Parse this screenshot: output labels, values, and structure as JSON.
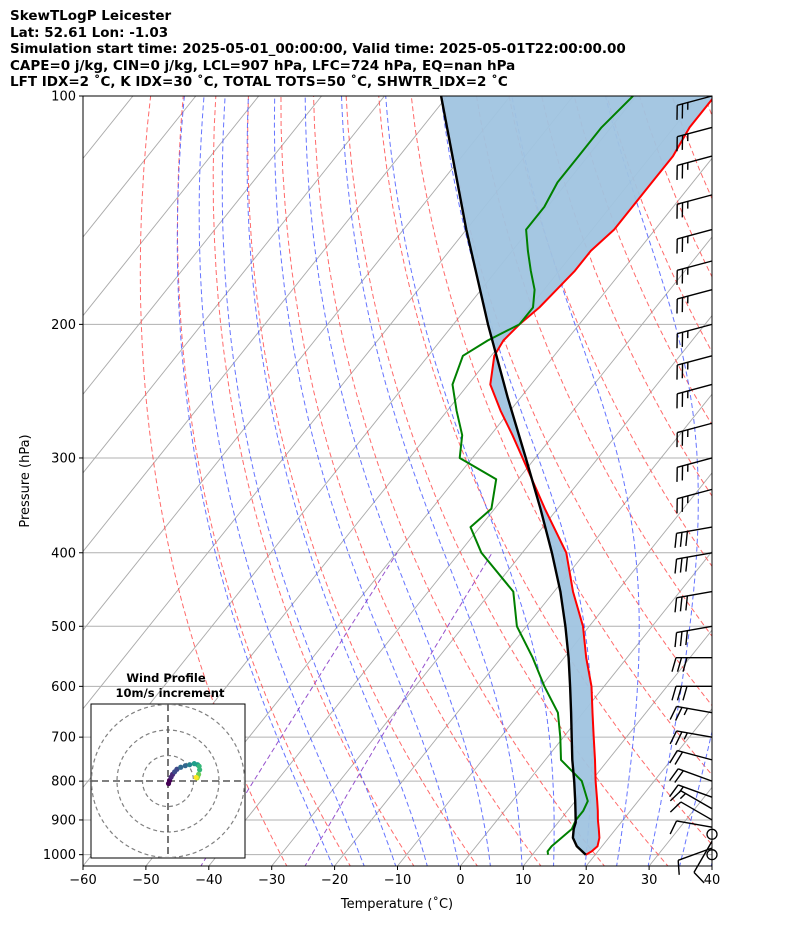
{
  "header": {
    "line1": "SkewTLogP Leicester",
    "line2": "Lat: 52.61   Lon: -1.03",
    "line3": "Simulation start time: 2025-05-01_00:00:00, Valid time: 2025-05-01T22:00:00.00",
    "line4": "CAPE=0 j/kg, CIN=0 j/kg, LCL=907 hPa, LFC=724 hPa, EQ=nan hPa",
    "line5": "LFT IDX=2 ˚C, K IDX=30 ˚C, TOTAL TOTS=50 ˚C, SHWTR_IDX=2 ˚C"
  },
  "colors": {
    "temperature": "#ff0000",
    "dewpoint": "#008000",
    "parcel": "#000000",
    "shading": "#a0c4e0",
    "dry_adiabat": "#ff5050",
    "moist_adiabat": "#4a5cff",
    "mixing_ratio": "#8b3fc8",
    "isotherm": "#aaaaaa"
  },
  "chart_data": {
    "type": "skewt",
    "xlabel": "Temperature (˚C)",
    "ylabel": "Pressure (hPa)",
    "xlim": [
      -60,
      40
    ],
    "ylim": [
      1035,
      100
    ],
    "xticks": [
      -60,
      -50,
      -40,
      -30,
      -20,
      -10,
      0,
      10,
      20,
      30,
      40
    ],
    "yticks": [
      1000,
      900,
      800,
      700,
      600,
      500,
      400,
      300,
      200,
      100
    ],
    "xtick_labels": [
      "−60",
      "−50",
      "−40",
      "−30",
      "−20",
      "−10",
      "0",
      "10",
      "20",
      "30",
      "40"
    ],
    "ytick_labels": [
      "1000",
      "900",
      "800",
      "700",
      "600",
      "500",
      "400",
      "300",
      "200",
      "100"
    ],
    "grid": true,
    "series": [
      {
        "key": "temperature",
        "p": [
          1000,
          990,
          975,
          950,
          925,
          900,
          875,
          850,
          800,
          750,
          700,
          650,
          600,
          550,
          500,
          450,
          400,
          350,
          300,
          280,
          260,
          240,
          220,
          210,
          200,
          190,
          180,
          170,
          160,
          150,
          140,
          130,
          120,
          110,
          100
        ],
        "t": [
          18.5,
          19.0,
          19.3,
          18.5,
          17.3,
          16.0,
          14.8,
          13.5,
          10.7,
          7.9,
          4.8,
          1.5,
          -2.0,
          -6.5,
          -11.0,
          -17.0,
          -23.0,
          -32.0,
          -42.0,
          -46.5,
          -51.5,
          -56.5,
          -59.5,
          -60.0,
          -59.5,
          -58.5,
          -58.0,
          -57.5,
          -57.5,
          -56.5,
          -56.5,
          -56.5,
          -56.5,
          -57.5,
          -57.5
        ]
      },
      {
        "key": "dewpoint",
        "p": [
          1000,
          990,
          975,
          950,
          925,
          900,
          875,
          850,
          800,
          750,
          700,
          650,
          600,
          550,
          500,
          450,
          400,
          370,
          350,
          320,
          300,
          280,
          260,
          240,
          220,
          210,
          200,
          190,
          180,
          170,
          160,
          150,
          140,
          130,
          120,
          110,
          100
        ],
        "t": [
          12.5,
          12.0,
          12.0,
          12.5,
          13.0,
          12.5,
          12.5,
          12.0,
          8.5,
          2.5,
          -0.5,
          -4.0,
          -9.5,
          -15.0,
          -21.5,
          -26.5,
          -36.5,
          -41.5,
          -40.5,
          -43.5,
          -52.0,
          -54.5,
          -58.5,
          -62.5,
          -64.5,
          -62.5,
          -59.5,
          -59.5,
          -61.5,
          -64.5,
          -67.5,
          -70.5,
          -70.5,
          -71.5,
          -71.5,
          -71.5,
          -70.5
        ]
      },
      {
        "key": "parcel",
        "p": [
          1000,
          975,
          950,
          925,
          907,
          880,
          850,
          800,
          750,
          700,
          650,
          600,
          550,
          500,
          450,
          400,
          350,
          300,
          250,
          200,
          150,
          100
        ],
        "t": [
          18.5,
          16.0,
          14.3,
          13.3,
          12.8,
          11.5,
          10.0,
          7.3,
          4.3,
          1.3,
          -1.9,
          -5.4,
          -9.3,
          -13.8,
          -19.0,
          -25.3,
          -32.7,
          -41.5,
          -52.0,
          -64.5,
          -80.0,
          -101.0
        ]
      }
    ],
    "wind_barbs": {
      "p": [
        1000,
        980,
        960,
        940,
        920,
        900,
        870,
        840,
        800,
        750,
        700,
        650,
        600,
        550,
        500,
        450,
        400,
        370,
        330,
        300,
        270,
        240,
        220,
        200,
        180,
        165,
        150,
        135,
        120,
        110,
        100
      ],
      "speed_kt": [
        0,
        8,
        10,
        0,
        8,
        12,
        14,
        16,
        20,
        22,
        24,
        26,
        28,
        28,
        28,
        28,
        28,
        28,
        24,
        24,
        24,
        24,
        24,
        24,
        24,
        24,
        24,
        24,
        24,
        24,
        24
      ],
      "direction_deg": [
        0,
        250,
        210,
        0,
        280,
        300,
        300,
        290,
        290,
        285,
        280,
        280,
        270,
        270,
        260,
        260,
        260,
        260,
        255,
        255,
        255,
        255,
        255,
        255,
        255,
        255,
        255,
        255,
        255,
        255,
        255
      ]
    },
    "wind_profile": {
      "title": "Wind Profile",
      "subtitle": "10m/s increment",
      "rings_ms": [
        10,
        20,
        30
      ],
      "hodograph_u": [
        0.2,
        0.6,
        1.2,
        1.8,
        2.6,
        3.5,
        5.0,
        6.8,
        8.5,
        10.3,
        11.6,
        12.2,
        12.4,
        12.0,
        11.6,
        11.4,
        11.0
      ],
      "hodograph_v": [
        -1.0,
        0.2,
        1.5,
        2.6,
        3.6,
        4.6,
        5.4,
        6.0,
        6.4,
        6.8,
        6.4,
        5.8,
        4.4,
        2.6,
        1.6,
        1.2,
        1.4
      ]
    }
  }
}
